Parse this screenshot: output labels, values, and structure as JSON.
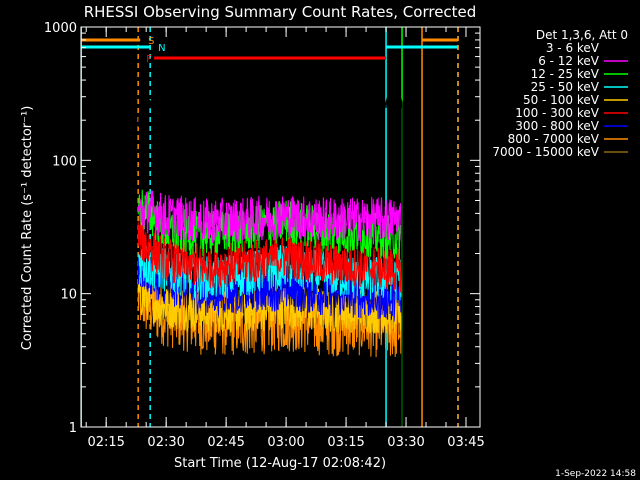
{
  "chart_data": {
    "type": "line",
    "title": "RHESSI Observing Summary Count Rates, Corrected",
    "xlabel": "Start Time (12-Aug-17 02:08:42)",
    "ylabel": "Corrected Count Rate (s⁻¹ detector⁻¹)",
    "yscale": "log",
    "ylim": [
      1,
      1000
    ],
    "xlim": [
      "02:08:42",
      "03:48:30"
    ],
    "x_ticks": [
      "02:15",
      "02:30",
      "02:45",
      "03:00",
      "03:15",
      "03:30",
      "03:45"
    ],
    "y_ticks": [
      "1",
      "10",
      "100",
      "1000"
    ],
    "legend_title": "Det 1,3,6, Att 0",
    "legend_position": "right",
    "series": [
      {
        "name": "3 - 6 keV",
        "color": "#000000",
        "x": [
          "02:23",
          "02:24",
          "02:27",
          "02:35",
          "02:45",
          "03:00",
          "03:15",
          "03:25",
          "03:29"
        ],
        "values": [
          190,
          260,
          270,
          275,
          280,
          275,
          270,
          268,
          268
        ]
      },
      {
        "name": "6 - 12 keV",
        "color": "#ff00ff",
        "x": [
          "02:23",
          "02:26",
          "02:30",
          "02:40",
          "02:50",
          "03:00",
          "03:10",
          "03:20",
          "03:29"
        ],
        "values": [
          40,
          42,
          38,
          35,
          36,
          38,
          36,
          36,
          36
        ]
      },
      {
        "name": "12 - 25 keV",
        "color": "#00ff00",
        "x": [
          "02:23",
          "02:26",
          "02:30",
          "02:40",
          "02:50",
          "03:00",
          "03:10",
          "03:20",
          "03:29"
        ],
        "values": [
          45,
          40,
          30,
          28,
          30,
          35,
          30,
          28,
          26
        ]
      },
      {
        "name": "25 - 50 keV",
        "color": "#00ffff",
        "x": [
          "02:23",
          "02:26",
          "02:30",
          "02:40",
          "02:50",
          "03:00",
          "03:10",
          "03:20",
          "03:29"
        ],
        "values": [
          18,
          16,
          15,
          13,
          14,
          16,
          14,
          13,
          13
        ]
      },
      {
        "name": "50 - 100 keV",
        "color": "#ffcc00",
        "x": [
          "02:23",
          "02:26",
          "02:30",
          "02:40",
          "02:50",
          "03:00",
          "03:10",
          "03:20",
          "03:29"
        ],
        "values": [
          10,
          9,
          8,
          7.5,
          7.5,
          8,
          7.5,
          7.5,
          7
        ]
      },
      {
        "name": "100 - 300 keV",
        "color": "#ff0000",
        "x": [
          "02:23",
          "02:26",
          "02:30",
          "02:40",
          "02:50",
          "03:00",
          "03:10",
          "03:20",
          "03:29"
        ],
        "values": [
          27,
          22,
          18,
          16,
          17,
          19,
          17,
          16,
          15
        ]
      },
      {
        "name": "300 - 800 keV",
        "color": "#0000ff",
        "x": [
          "02:23",
          "02:26",
          "02:30",
          "02:40",
          "02:50",
          "03:00",
          "03:10",
          "03:20",
          "03:29"
        ],
        "values": [
          16,
          14,
          12,
          10,
          10.5,
          11,
          10,
          9.5,
          9
        ]
      },
      {
        "name": "800 - 7000 keV",
        "color": "#ff8c00",
        "x": [
          "02:23",
          "02:26",
          "02:30",
          "02:40",
          "02:50",
          "03:00",
          "03:10",
          "03:20",
          "03:29"
        ],
        "values": [
          9.5,
          8,
          7,
          6,
          6,
          6.5,
          6,
          6,
          5.5
        ]
      },
      {
        "name": "7000 - 15000 keV",
        "color": "#8b6914",
        "x": [],
        "values": []
      }
    ],
    "flag_bars": [
      {
        "label": "S",
        "color": "#ff8c00",
        "segments": [
          [
            "02:08:42",
            "02:23:30"
          ],
          [
            "03:34",
            "03:43"
          ]
        ]
      },
      {
        "label": "N",
        "color": "#00ffff",
        "segments": [
          [
            "02:08:42",
            "02:26"
          ],
          [
            "03:25",
            "03:43"
          ]
        ]
      },
      {
        "label": "F",
        "color": "#ff0000",
        "segments": [
          [
            "02:27",
            "03:25"
          ]
        ]
      }
    ],
    "vertical_lines": [
      {
        "x": "02:08:45",
        "color": "#00ffff",
        "style": "solid"
      },
      {
        "x": "02:23",
        "color": "#ff8c00",
        "style": "dashed"
      },
      {
        "x": "02:26",
        "color": "#00ffff",
        "style": "dashed"
      },
      {
        "x": "03:25",
        "color": "#00ffff",
        "style": "solid"
      },
      {
        "x": "03:29",
        "color": "#00ff00",
        "style": "solid"
      },
      {
        "x": "03:34",
        "color": "#ff8c00",
        "style": "solid"
      },
      {
        "x": "03:43",
        "color": "#00ffff",
        "style": "dashed"
      },
      {
        "x": "03:43",
        "color": "#ff8c00",
        "style": "dashed"
      }
    ],
    "timestamp": "1-Sep-2022 14:58"
  }
}
